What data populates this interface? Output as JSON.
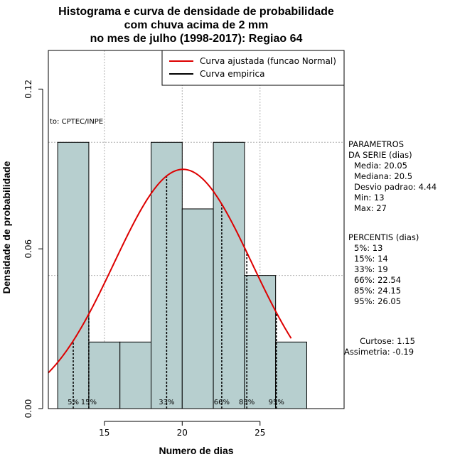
{
  "chart_data": {
    "type": "bar",
    "title_lines": [
      "Histograma e curva de densidade de probabilidade",
      "com chuva acima de 2 mm",
      "no mes de julho (1998-2017): Regiao 64"
    ],
    "xlabel": "Numero de dias",
    "ylabel": "Densidade de probabilidade",
    "xlim": [
      11.4,
      30.4
    ],
    "ylim": [
      0,
      0.1345
    ],
    "x_ticks": [
      15,
      20,
      25
    ],
    "y_ticks": [
      0.0,
      0.06,
      0.12
    ],
    "y_tick_labels": [
      "0.00",
      "0.06",
      "0.12"
    ],
    "grid_x": [
      15,
      20,
      25
    ],
    "grid_y": [
      0.05,
      0.1
    ],
    "bins": [
      {
        "from": 12,
        "to": 14,
        "density": 0.1
      },
      {
        "from": 14,
        "to": 16,
        "density": 0.025
      },
      {
        "from": 16,
        "to": 18,
        "density": 0.025
      },
      {
        "from": 18,
        "to": 20,
        "density": 0.1
      },
      {
        "from": 20,
        "to": 22,
        "density": 0.075
      },
      {
        "from": 22,
        "to": 24,
        "density": 0.1
      },
      {
        "from": 24,
        "to": 26,
        "density": 0.05
      },
      {
        "from": 26,
        "to": 28,
        "density": 0.025
      }
    ],
    "bar_color": "#b7cfcf",
    "normal_curve": {
      "mean": 20.05,
      "sd": 4.44,
      "x_from": 11.4,
      "x_to": 27,
      "color": "#dd0000"
    },
    "percentile_lines": [
      {
        "label": "5%",
        "x": 13
      },
      {
        "label": "15%",
        "x": 14
      },
      {
        "label": "33%",
        "x": 19
      },
      {
        "label": "66%",
        "x": 22.54
      },
      {
        "label": "85%",
        "x": 24.15
      },
      {
        "label": "95%",
        "x": 26.05
      }
    ],
    "legend": [
      {
        "label": "Curva ajustada (funcao Normal)",
        "color": "#dd0000"
      },
      {
        "label": "Curva empirica",
        "color": "#000000"
      }
    ],
    "credit": "to: CPTEC/INPE",
    "parametros": [
      "PARAMETROS",
      "DA SERIE (dias)",
      "Media: 20.05",
      "Mediana: 20.5",
      "Desvio padrao: 4.44",
      "Min: 13",
      "Max: 27"
    ],
    "percentis": [
      "PERCENTIS (dias)",
      "5%: 13",
      "15%: 14",
      "33%: 19",
      "66%: 22.54",
      "85%: 24.15",
      "95%: 26.05"
    ],
    "shape_stats": [
      "Curtose: 1.15",
      "Assimetria: -0.19"
    ]
  }
}
